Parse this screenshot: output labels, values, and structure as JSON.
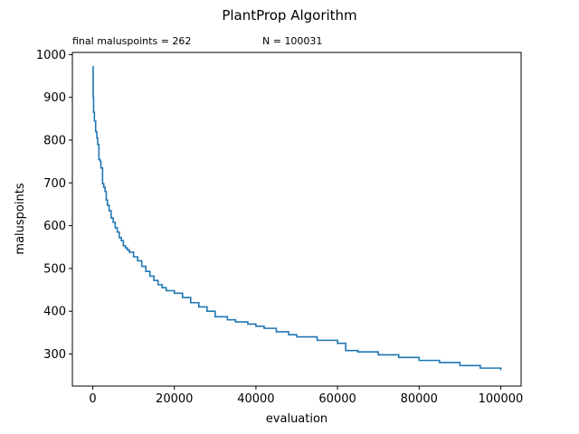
{
  "chart_data": {
    "type": "line",
    "title": "PlantProp Algorithm",
    "annotations": [
      "final maluspoints = 262",
      "N = 100031"
    ],
    "xlabel": "evaluation",
    "ylabel": "maluspoints",
    "xlim": [
      -5000,
      105000
    ],
    "ylim": [
      225,
      1005
    ],
    "xticks": [
      0,
      20000,
      40000,
      60000,
      80000,
      100000
    ],
    "yticks": [
      300,
      400,
      500,
      600,
      700,
      800,
      900,
      1000
    ],
    "grid": false,
    "color": "#1f77b4",
    "series": [
      {
        "x": [
          0,
          100,
          200,
          400,
          700,
          1000,
          1200,
          1500,
          1800,
          2000,
          2400,
          2700,
          3000,
          3300,
          3600,
          4000,
          4500,
          5000,
          5500,
          6000,
          6500,
          7000,
          7500,
          8000,
          8500,
          9000,
          10000,
          11000,
          12000,
          13000,
          14000,
          15000,
          16000,
          17000,
          18000,
          20000,
          22000,
          24000,
          26000,
          28000,
          30000,
          33000,
          35000,
          38000,
          40000,
          42000,
          45000,
          48000,
          50000,
          55000,
          60000,
          62000,
          65000,
          70000,
          75000,
          80000,
          85000,
          90000,
          95000,
          100031
        ],
        "y": [
          972,
          900,
          865,
          845,
          820,
          805,
          790,
          755,
          750,
          735,
          698,
          690,
          680,
          660,
          648,
          635,
          618,
          608,
          595,
          585,
          572,
          565,
          553,
          548,
          543,
          538,
          527,
          518,
          505,
          493,
          482,
          472,
          462,
          455,
          448,
          442,
          432,
          420,
          410,
          400,
          387,
          380,
          375,
          370,
          365,
          360,
          352,
          345,
          340,
          332,
          325,
          308,
          305,
          298,
          292,
          285,
          280,
          273,
          267,
          262
        ]
      }
    ]
  }
}
